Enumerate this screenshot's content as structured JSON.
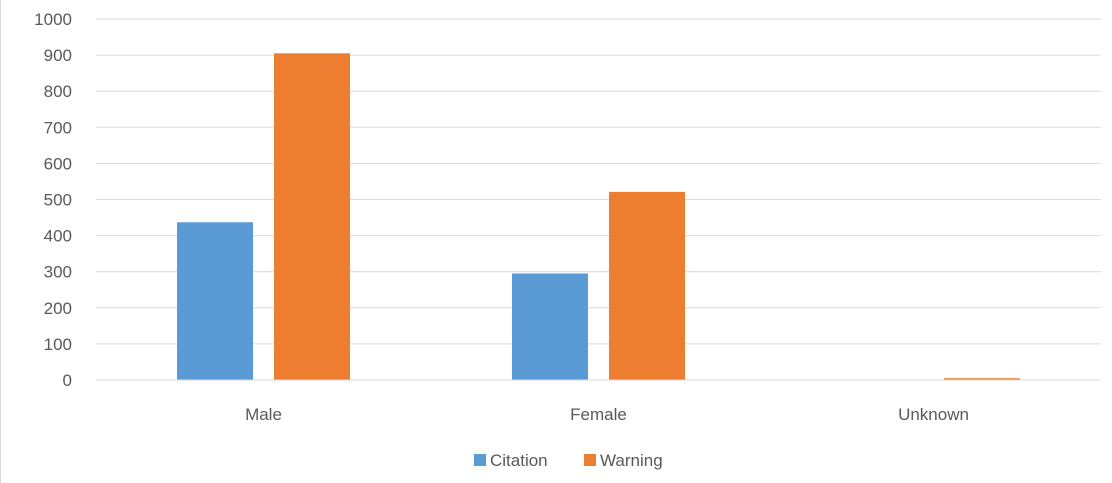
{
  "chart_data": {
    "type": "bar",
    "title": "",
    "xlabel": "",
    "ylabel": "",
    "categories": [
      "Male",
      "Female",
      "Unknown"
    ],
    "series": [
      {
        "name": "Citation",
        "color": "#5b9bd5",
        "values": [
          437,
          295,
          0
        ]
      },
      {
        "name": "Warning",
        "color": "#ed7d31",
        "values": [
          905,
          521,
          5
        ]
      }
    ],
    "ylim": [
      0,
      1000
    ],
    "yticks": [
      0,
      100,
      200,
      300,
      400,
      500,
      600,
      700,
      800,
      900,
      1000
    ],
    "grid": true,
    "legend_position": "bottom"
  }
}
